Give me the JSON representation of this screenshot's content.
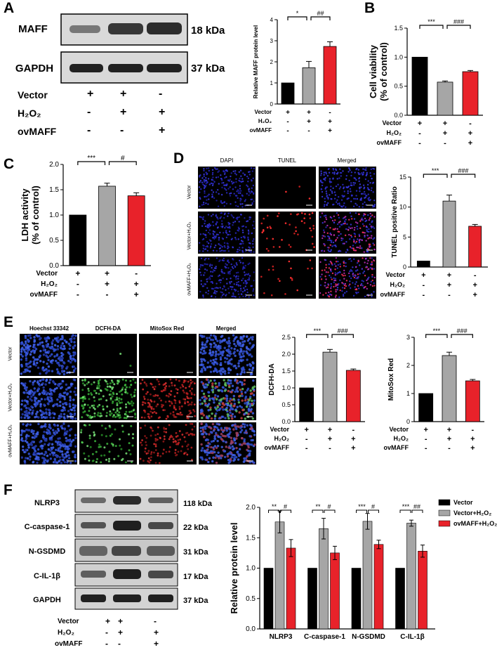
{
  "panels": {
    "A": {
      "letter": "A",
      "blot_labels": [
        "MAFF",
        "GAPDH"
      ],
      "blot_sizes": [
        "18 kDa",
        "37 kDa"
      ],
      "band_intensity": {
        "MAFF": [
          0.55,
          0.8,
          0.85
        ],
        "GAPDH": [
          0.85,
          0.85,
          0.85
        ]
      },
      "conditions": [
        {
          "label": "Vector",
          "signs": [
            "+",
            "+",
            "-"
          ]
        },
        {
          "label": "H₂O₂",
          "signs": [
            "-",
            "+",
            "+"
          ]
        },
        {
          "label": "ovMAFF",
          "signs": [
            "-",
            "-",
            "+"
          ]
        }
      ],
      "chart_data": {
        "type": "bar",
        "ylabel": "Relative MAFF protein level",
        "ylim": [
          0,
          4
        ],
        "yticks": [
          "0",
          "1",
          "2",
          "3",
          "4"
        ],
        "values": [
          1.0,
          1.72,
          2.73
        ],
        "errors": [
          0,
          0.3,
          0.22
        ],
        "colors": [
          "#000000",
          "#a6a6a6",
          "#e8222a"
        ],
        "sig": [
          {
            "from": 0,
            "to": 1,
            "text": "*"
          },
          {
            "from": 1,
            "to": 2,
            "text": "##"
          }
        ],
        "conditions": [
          {
            "label": "Vector",
            "signs": [
              "+",
              "+",
              "-"
            ]
          },
          {
            "label": "H₂O₂",
            "signs": [
              "-",
              "+",
              "+"
            ]
          },
          {
            "label": "ovMAFF",
            "signs": [
              "-",
              "-",
              "+"
            ]
          }
        ]
      }
    },
    "B": {
      "letter": "B",
      "chart_data": {
        "type": "bar",
        "ylabel": "Cell viability (% of control)",
        "ylabel_lines": [
          "Cell viability",
          "(% of control)"
        ],
        "ylim": [
          0,
          1.5
        ],
        "yticks": [
          "0.0",
          "0.5",
          "1.0",
          "1.5"
        ],
        "values": [
          1.0,
          0.57,
          0.75
        ],
        "errors": [
          0,
          0.02,
          0.02
        ],
        "colors": [
          "#000000",
          "#a6a6a6",
          "#e8222a"
        ],
        "sig": [
          {
            "from": 0,
            "to": 1,
            "text": "***"
          },
          {
            "from": 1,
            "to": 2,
            "text": "###"
          }
        ],
        "conditions": [
          {
            "label": "Vector",
            "signs": [
              "+",
              "+",
              "-"
            ]
          },
          {
            "label": "H₂O₂",
            "signs": [
              "-",
              "+",
              "+"
            ]
          },
          {
            "label": "ovMAFF",
            "signs": [
              "-",
              "-",
              "+"
            ]
          }
        ]
      }
    },
    "C": {
      "letter": "C",
      "chart_data": {
        "type": "bar",
        "ylabel": "LDH activity (% of control)",
        "ylabel_lines": [
          "LDH activity",
          "(% of control)"
        ],
        "ylim": [
          0,
          2.0
        ],
        "yticks": [
          "0.0",
          "0.5",
          "1.0",
          "1.5",
          "2.0"
        ],
        "values": [
          1.0,
          1.57,
          1.38
        ],
        "errors": [
          0,
          0.06,
          0.06
        ],
        "colors": [
          "#000000",
          "#a6a6a6",
          "#e8222a"
        ],
        "sig": [
          {
            "from": 0,
            "to": 1,
            "text": "***"
          },
          {
            "from": 1,
            "to": 2,
            "text": "#"
          }
        ],
        "conditions": [
          {
            "label": "Vector",
            "signs": [
              "+",
              "+",
              "-"
            ]
          },
          {
            "label": "H₂O₂",
            "signs": [
              "-",
              "+",
              "+"
            ]
          },
          {
            "label": "ovMAFF",
            "signs": [
              "-",
              "-",
              "+"
            ]
          }
        ]
      }
    },
    "D": {
      "letter": "D",
      "columns": [
        "DAPI",
        "TUNEL",
        "Merged"
      ],
      "rows": [
        "Vector",
        "Vector+H₂O₂",
        "ovMAFF+H₂O₂"
      ],
      "chart_data": {
        "type": "bar",
        "ylabel": "TUNEL positive Ratio",
        "ylim": [
          0,
          15
        ],
        "yticks": [
          "0",
          "5",
          "10",
          "15"
        ],
        "values": [
          1.0,
          11.0,
          6.8
        ],
        "errors": [
          0,
          1.0,
          0.3
        ],
        "colors": [
          "#000000",
          "#a6a6a6",
          "#e8222a"
        ],
        "sig": [
          {
            "from": 0,
            "to": 1,
            "text": "***"
          },
          {
            "from": 1,
            "to": 2,
            "text": "###"
          }
        ],
        "conditions": [
          {
            "label": "Vector",
            "signs": [
              "+",
              "+",
              "-"
            ]
          },
          {
            "label": "H₂O₂",
            "signs": [
              "-",
              "+",
              "+"
            ]
          },
          {
            "label": "ovMAFF",
            "signs": [
              "-",
              "-",
              "+"
            ]
          }
        ]
      }
    },
    "E": {
      "letter": "E",
      "columns": [
        "Hoechst 33342",
        "DCFH-DA",
        "MitoSox Red",
        "Merged"
      ],
      "rows": [
        "Vector",
        "Vector+H₂O₂",
        "ovMAFF+H₂O₂"
      ],
      "chart_data": [
        {
          "type": "bar",
          "ylabel": "DCFH-DA",
          "ylim": [
            0,
            2.5
          ],
          "yticks": [
            "0.0",
            "0.5",
            "1.0",
            "1.5",
            "2.0",
            "2.5"
          ],
          "values": [
            1.0,
            2.06,
            1.52
          ],
          "errors": [
            0,
            0.08,
            0.04
          ],
          "colors": [
            "#000000",
            "#a6a6a6",
            "#e8222a"
          ],
          "sig": [
            {
              "from": 0,
              "to": 1,
              "text": "***"
            },
            {
              "from": 1,
              "to": 2,
              "text": "###"
            }
          ],
          "conditions": [
            {
              "label": "Vector",
              "signs": [
                "+",
                "+",
                "-"
              ]
            },
            {
              "label": "H₂O₂",
              "signs": [
                "-",
                "+",
                "+"
              ]
            },
            {
              "label": "ovMAFF",
              "signs": [
                "-",
                "-",
                "+"
              ]
            }
          ]
        },
        {
          "type": "bar",
          "ylabel": "MitoSox Red",
          "ylim": [
            0,
            3
          ],
          "yticks": [
            "0",
            "1",
            "2",
            "3"
          ],
          "values": [
            1.0,
            2.35,
            1.45
          ],
          "errors": [
            0,
            0.12,
            0.05
          ],
          "colors": [
            "#000000",
            "#a6a6a6",
            "#e8222a"
          ],
          "sig": [
            {
              "from": 0,
              "to": 1,
              "text": "***"
            },
            {
              "from": 1,
              "to": 2,
              "text": "###"
            }
          ],
          "conditions": [
            {
              "label": "Vector",
              "signs": [
                "+",
                "+",
                "-"
              ]
            },
            {
              "label": "H₂O₂",
              "signs": [
                "-",
                "+",
                "+"
              ]
            },
            {
              "label": "ovMAFF",
              "signs": [
                "-",
                "-",
                "+"
              ]
            }
          ]
        }
      ]
    },
    "F": {
      "letter": "F",
      "blot_labels": [
        "NLRP3",
        "C-caspase-1",
        "N-GSDMD",
        "C-IL-1β",
        "GAPDH"
      ],
      "blot_sizes": [
        "118 kDa",
        "22 kDa",
        "31 kDa",
        "17 kDa",
        "37 kDa"
      ],
      "conditions": [
        {
          "label": "Vector",
          "signs": [
            "+",
            "+",
            "-"
          ]
        },
        {
          "label": "H₂O₂",
          "signs": [
            "-",
            "+",
            "+"
          ]
        },
        {
          "label": "ovMAFF",
          "signs": [
            "-",
            "-",
            "+"
          ]
        }
      ],
      "chart_data": {
        "type": "bar",
        "ylabel": "Relative protein level",
        "ylim": [
          0,
          2.0
        ],
        "yticks": [
          "0.0",
          "0.5",
          "1.0",
          "1.5",
          "2.0"
        ],
        "categories": [
          "NLRP3",
          "C-caspase-1",
          "N-GSDMD",
          "C-IL-1β"
        ],
        "series": [
          {
            "name": "Vector",
            "color": "#000000",
            "values": [
              1.0,
              1.0,
              1.0,
              1.0
            ],
            "errors": [
              0,
              0,
              0,
              0
            ]
          },
          {
            "name": "Vector+H₂O₂",
            "color": "#a6a6a6",
            "values": [
              1.76,
              1.65,
              1.77,
              1.74
            ],
            "errors": [
              0.18,
              0.17,
              0.13,
              0.05
            ]
          },
          {
            "name": "ovMAFF+H₂O₂",
            "color": "#e8222a",
            "values": [
              1.33,
              1.25,
              1.39,
              1.28
            ],
            "errors": [
              0.14,
              0.11,
              0.07,
              0.1
            ]
          }
        ],
        "sig": [
          [
            "**",
            "#"
          ],
          [
            "**",
            "#"
          ],
          [
            "***",
            "#"
          ],
          [
            "***",
            "##"
          ]
        ],
        "legend_position": "top-right"
      }
    }
  }
}
